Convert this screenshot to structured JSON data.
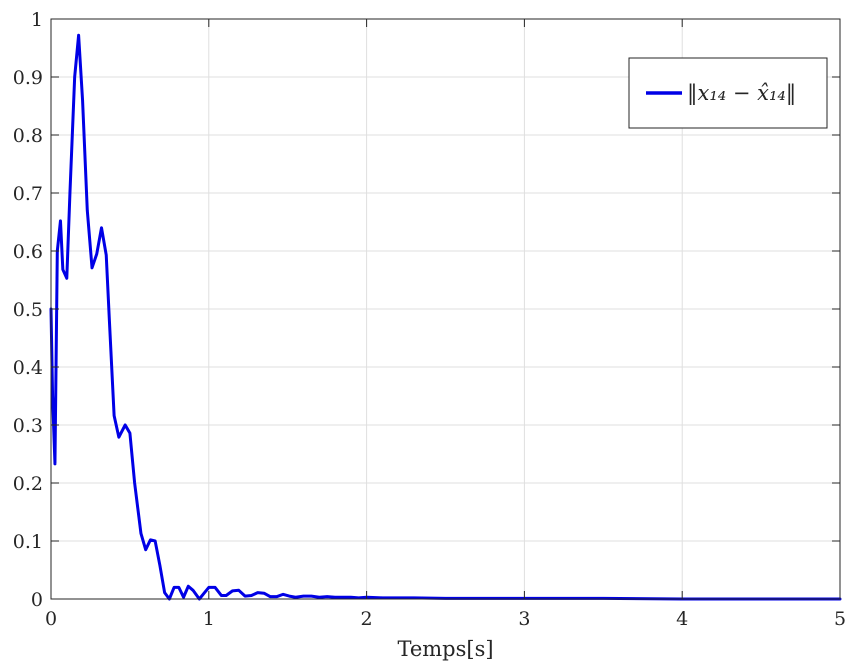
{
  "chart_data": {
    "type": "line",
    "title": "",
    "xlabel": "Temps[s]",
    "ylabel": "",
    "xlim": [
      0,
      5
    ],
    "ylim": [
      0,
      1
    ],
    "xticks": [
      0,
      1,
      2,
      3,
      4,
      5
    ],
    "xtick_labels": [
      "0",
      "1",
      "2",
      "3",
      "4",
      "5"
    ],
    "yticks": [
      0,
      0.1,
      0.2,
      0.3,
      0.4,
      0.5,
      0.6,
      0.7,
      0.8,
      0.9,
      1
    ],
    "ytick_labels": [
      "0",
      "0.1",
      "0.2",
      "0.3",
      "0.4",
      "0.5",
      "0.6",
      "0.7",
      "0.8",
      "0.9",
      "1"
    ],
    "grid": true,
    "legend_position": "top-right",
    "series": [
      {
        "name": "‖x₁₄ − x̂₁₄‖",
        "color": "#0000e6",
        "x": [
          0,
          0.01,
          0.025,
          0.04,
          0.06,
          0.075,
          0.1,
          0.12,
          0.15,
          0.175,
          0.2,
          0.23,
          0.26,
          0.29,
          0.32,
          0.35,
          0.37,
          0.4,
          0.43,
          0.47,
          0.5,
          0.53,
          0.57,
          0.6,
          0.63,
          0.66,
          0.69,
          0.72,
          0.75,
          0.78,
          0.81,
          0.84,
          0.87,
          0.9,
          0.94,
          0.97,
          1.0,
          1.04,
          1.08,
          1.11,
          1.15,
          1.19,
          1.23,
          1.27,
          1.31,
          1.35,
          1.39,
          1.43,
          1.47,
          1.51,
          1.55,
          1.6,
          1.65,
          1.7,
          1.75,
          1.8,
          1.85,
          1.9,
          1.95,
          2.0,
          2.1,
          2.2,
          2.3,
          2.5,
          3.0,
          3.5,
          4.0,
          4.5,
          5.0
        ],
        "values": [
          0.5,
          0.35,
          0.233,
          0.6,
          0.652,
          0.568,
          0.553,
          0.7,
          0.9,
          0.972,
          0.86,
          0.67,
          0.571,
          0.595,
          0.64,
          0.593,
          0.48,
          0.316,
          0.279,
          0.3,
          0.286,
          0.2,
          0.113,
          0.085,
          0.102,
          0.1,
          0.058,
          0.011,
          0.0,
          0.02,
          0.02,
          0.003,
          0.022,
          0.015,
          0.0,
          0.01,
          0.02,
          0.02,
          0.006,
          0.006,
          0.014,
          0.015,
          0.005,
          0.006,
          0.011,
          0.01,
          0.004,
          0.004,
          0.008,
          0.005,
          0.003,
          0.005,
          0.005,
          0.003,
          0.004,
          0.003,
          0.003,
          0.003,
          0.002,
          0.003,
          0.002,
          0.002,
          0.002,
          0.001,
          0.001,
          0.001,
          0.0,
          0.0,
          0.0
        ]
      }
    ]
  }
}
